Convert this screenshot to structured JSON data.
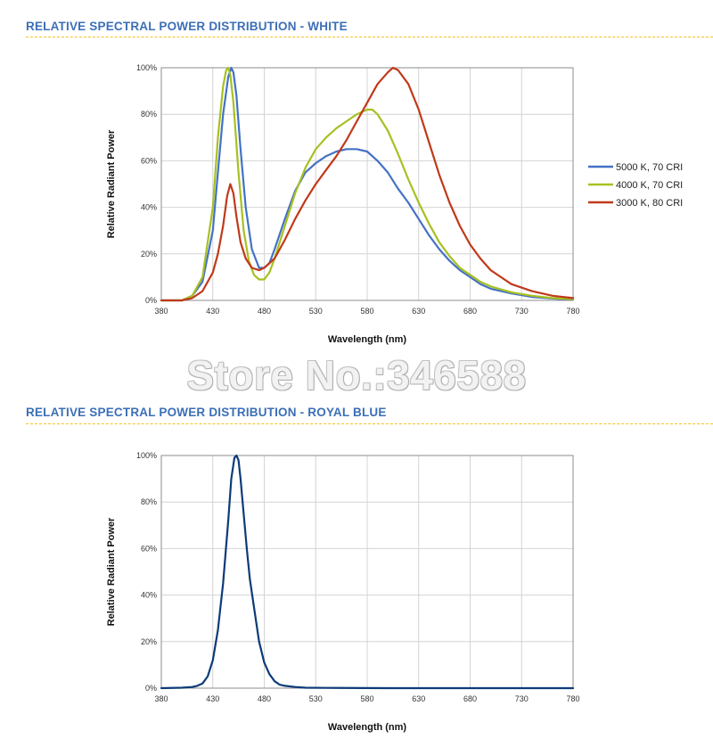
{
  "colors": {
    "title": "#3c6fb6",
    "divider": "#f2c31f",
    "grid": "#d4d4d4",
    "frame": "#8c8c8c"
  },
  "watermark": "Store No.:346588",
  "sections": [
    {
      "title": "RELATIVE SPECTRAL POWER DISTRIBUTION - WHITE"
    },
    {
      "title": "RELATIVE SPECTRAL POWER DISTRIBUTION - ROYAL BLUE"
    }
  ],
  "chart_data": [
    {
      "type": "line",
      "xlabel": "Wavelength (nm)",
      "ylabel": "Relative Radiant Power",
      "xlim": [
        380,
        780
      ],
      "ylim": [
        0,
        100
      ],
      "xticks": [
        "380",
        "430",
        "480",
        "530",
        "580",
        "630",
        "680",
        "730",
        "780"
      ],
      "yticks": [
        "0%",
        "20%",
        "40%",
        "60%",
        "80%",
        "100%"
      ],
      "grid": true,
      "legend_position": "right",
      "series": [
        {
          "name": "5000 K, 70 CRI",
          "color": "#4472c4",
          "x": [
            380,
            400,
            410,
            420,
            430,
            435,
            440,
            445,
            448,
            450,
            453,
            457,
            462,
            468,
            475,
            480,
            485,
            490,
            500,
            510,
            520,
            530,
            540,
            550,
            560,
            570,
            580,
            590,
            600,
            610,
            620,
            630,
            640,
            650,
            660,
            670,
            680,
            690,
            700,
            720,
            740,
            760,
            780
          ],
          "y": [
            0,
            0,
            2,
            8,
            30,
            55,
            80,
            96,
            100,
            98,
            88,
            65,
            40,
            22,
            14,
            14,
            16,
            22,
            35,
            47,
            55,
            59,
            62,
            64,
            65,
            65,
            64,
            60,
            55,
            48,
            42,
            35,
            28,
            22,
            17,
            13,
            10,
            7,
            5,
            3,
            1.5,
            0.8,
            0.3
          ]
        },
        {
          "name": "4000 K, 70 CRI",
          "color": "#a8c021",
          "x": [
            380,
            400,
            410,
            420,
            430,
            435,
            440,
            443,
            445,
            447,
            450,
            455,
            460,
            465,
            470,
            475,
            480,
            485,
            490,
            500,
            510,
            520,
            530,
            540,
            550,
            560,
            570,
            580,
            585,
            590,
            600,
            610,
            620,
            630,
            640,
            650,
            660,
            670,
            680,
            690,
            700,
            720,
            740,
            760,
            780
          ],
          "y": [
            0,
            0,
            2,
            10,
            40,
            70,
            92,
            99,
            100,
            97,
            85,
            55,
            30,
            17,
            11,
            9,
            9,
            12,
            18,
            32,
            46,
            57,
            65,
            70,
            74,
            77,
            80,
            82,
            82,
            80,
            73,
            63,
            52,
            42,
            33,
            25,
            19,
            14,
            11,
            8,
            6,
            3.5,
            2,
            1,
            0.5
          ]
        },
        {
          "name": "3000 K, 80 CRI",
          "color": "#c0391a",
          "x": [
            380,
            400,
            410,
            420,
            430,
            435,
            440,
            444,
            447,
            450,
            453,
            457,
            462,
            468,
            475,
            480,
            490,
            500,
            510,
            520,
            530,
            540,
            550,
            560,
            570,
            580,
            590,
            600,
            605,
            610,
            620,
            630,
            640,
            650,
            660,
            670,
            680,
            690,
            700,
            710,
            720,
            740,
            760,
            780
          ],
          "y": [
            0,
            0,
            1,
            4,
            12,
            20,
            32,
            45,
            50,
            46,
            36,
            25,
            18,
            14,
            13,
            14,
            18,
            26,
            35,
            43,
            50,
            56,
            62,
            69,
            77,
            85,
            93,
            98,
            100,
            99,
            93,
            82,
            68,
            54,
            42,
            32,
            24,
            18,
            13,
            10,
            7,
            4,
            2,
            1
          ]
        }
      ]
    },
    {
      "type": "line",
      "xlabel": "Wavelength (nm)",
      "ylabel": "Relative Radiant Power",
      "xlim": [
        380,
        780
      ],
      "ylim": [
        0,
        100
      ],
      "xticks": [
        "380",
        "430",
        "480",
        "530",
        "580",
        "630",
        "680",
        "730",
        "780"
      ],
      "yticks": [
        "0%",
        "20%",
        "40%",
        "60%",
        "80%",
        "100%"
      ],
      "grid": true,
      "series": [
        {
          "color": "#0d3b78",
          "x": [
            380,
            400,
            410,
            415,
            420,
            425,
            430,
            435,
            440,
            445,
            448,
            451,
            453,
            455,
            457,
            460,
            463,
            466,
            470,
            475,
            480,
            485,
            490,
            495,
            500,
            510,
            520,
            540,
            600,
            700,
            780
          ],
          "y": [
            0,
            0.2,
            0.5,
            1,
            2,
            5,
            12,
            25,
            45,
            72,
            90,
            99,
            100,
            98,
            90,
            75,
            60,
            47,
            35,
            20,
            11,
            6,
            3,
            1.5,
            1,
            0.5,
            0.2,
            0.1,
            0,
            0,
            0
          ]
        }
      ]
    }
  ]
}
